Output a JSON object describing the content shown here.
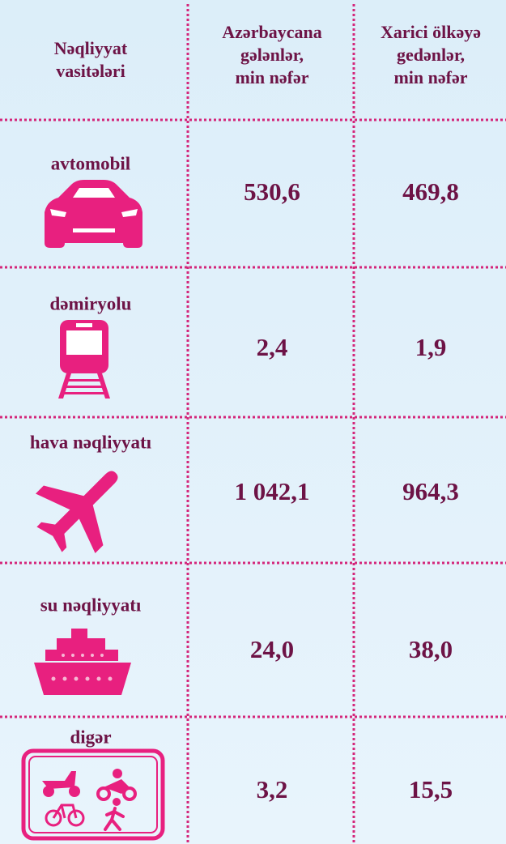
{
  "headers": [
    [
      "Nəqliyyat",
      "vasitələri"
    ],
    [
      "Azərbaycana",
      "gələnlər,",
      "min nəfər"
    ],
    [
      "Xarici ölkəyə",
      "gedənlər,",
      "min nəfər"
    ]
  ],
  "rows": [
    {
      "label": "avtomobil",
      "values": [
        "530,6",
        "469,8"
      ]
    },
    {
      "label": "dəmiryolu",
      "values": [
        "2,4",
        "1,9"
      ]
    },
    {
      "label": "hava nəqliyyatı",
      "values": [
        "1 042,1",
        "964,3"
      ]
    },
    {
      "label": "su nəqliyyatı",
      "values": [
        "24,0",
        "38,0"
      ]
    },
    {
      "label": "digər",
      "values": [
        "3,2",
        "15,5"
      ]
    }
  ]
}
